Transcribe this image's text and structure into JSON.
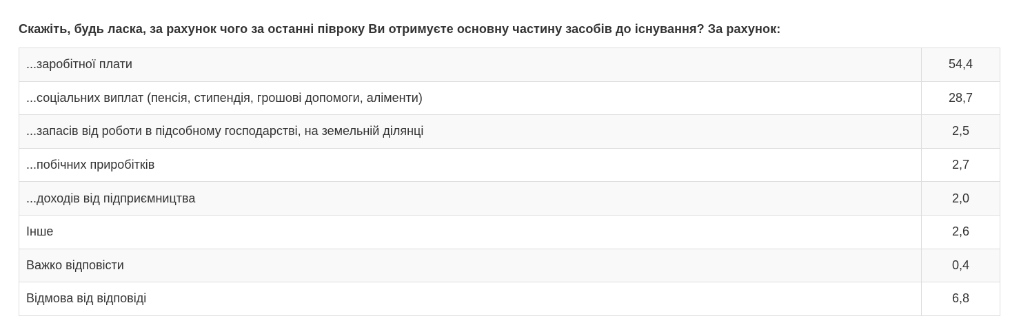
{
  "question": "Скажіть, будь ласка, за рахунок чого за останні півроку Ви отримуєте основну частину засобів до існування? За рахунок:",
  "rows": [
    {
      "label": "...заробітної плати",
      "value": "54,4"
    },
    {
      "label": "...соціальних виплат (пенсія, стипендія, грошові допомоги, аліменти)",
      "value": "28,7"
    },
    {
      "label": "...запасів від роботи в підсобному господарстві, на земельній ділянці",
      "value": "2,5"
    },
    {
      "label": "...побічних приробітків",
      "value": "2,7"
    },
    {
      "label": "...доходів від підприємництва",
      "value": "2,0"
    },
    {
      "label": "Інше",
      "value": "2,6"
    },
    {
      "label": "Важко відповісти",
      "value": "0,4"
    },
    {
      "label": "Відмова від відповіді",
      "value": "6,8"
    }
  ]
}
